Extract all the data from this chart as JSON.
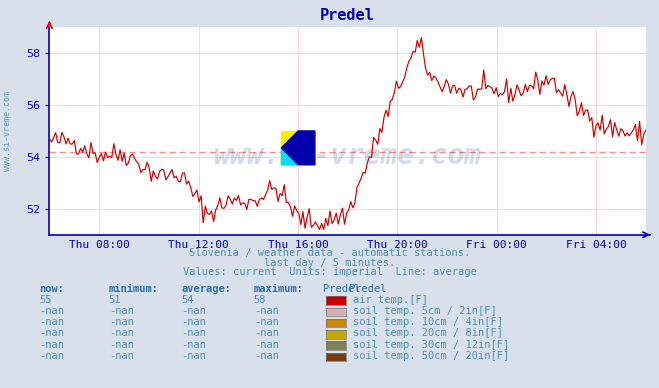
{
  "title": "Predel",
  "bg_color": "#d8e0ec",
  "plot_bg_color": "#ffffff",
  "line_color": "#cc0000",
  "avg_line_color": "#ff8888",
  "avg_value": 54.2,
  "ylim": [
    51.0,
    59.0
  ],
  "yticks": [
    52,
    54,
    56,
    58
  ],
  "grid_color": "#ffcccc",
  "subtitle1": "Slovenia / weather data - automatic stations.",
  "subtitle2": "last day / 5 minutes.",
  "subtitle3": "Values: current  Units: imperial  Line: average",
  "watermark": "www.si-vreme.com",
  "xtick_labels": [
    "Thu 08:00",
    "Thu 12:00",
    "Thu 16:00",
    "Thu 20:00",
    "Fri 00:00",
    "Fri 04:00"
  ],
  "xtick_positions": [
    0.083,
    0.25,
    0.417,
    0.583,
    0.75,
    0.917
  ],
  "table_headers": [
    "now:",
    "minimum:",
    "average:",
    "maximum:",
    "Predel"
  ],
  "table_rows": [
    [
      "55",
      "51",
      "54",
      "58",
      "#cc0000",
      "air temp.[F]"
    ],
    [
      "-nan",
      "-nan",
      "-nan",
      "-nan",
      "#d4b0b0",
      "soil temp. 5cm / 2in[F]"
    ],
    [
      "-nan",
      "-nan",
      "-nan",
      "-nan",
      "#c8860a",
      "soil temp. 10cm / 4in[F]"
    ],
    [
      "-nan",
      "-nan",
      "-nan",
      "-nan",
      "#c8a800",
      "soil temp. 20cm / 8in[F]"
    ],
    [
      "-nan",
      "-nan",
      "-nan",
      "-nan",
      "#808050",
      "soil temp. 30cm / 12in[F]"
    ],
    [
      "-nan",
      "-nan",
      "-nan",
      "-nan",
      "#7a3a10",
      "soil temp. 50cm / 20in[F]"
    ]
  ],
  "axis_color": "#0000bb",
  "title_color": "#0000bb",
  "text_color": "#5090b0",
  "header_color": "#3070a0",
  "sidebar_text": "www.si-vreme.com"
}
